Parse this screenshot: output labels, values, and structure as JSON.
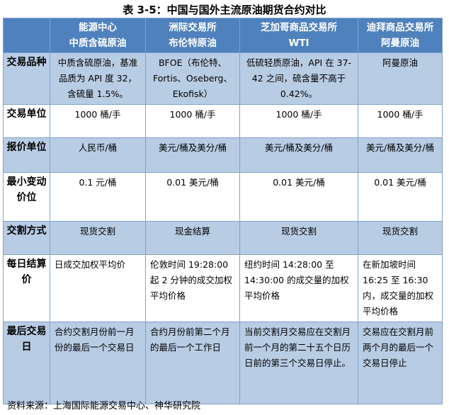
{
  "title": "表 3-5：中国与国外主流原油期货合约对比",
  "columns": [
    {
      "line1": "",
      "line2": ""
    },
    {
      "line1": "能源中心",
      "line2": "中质含硫原油"
    },
    {
      "line1": "洲际交易所",
      "line2": "布伦特原油"
    },
    {
      "line1": "芝加哥商品交易所",
      "line2": "WTI"
    },
    {
      "line1": "迪拜商品交易所",
      "line2": "阿曼原油"
    }
  ],
  "rows": [
    {
      "label": "交易品种",
      "cells": [
        "中质含硫原油，基准品质为 API 度 32，含硫量 1.5%。",
        "BFOE（布伦特、Fortis、Oseberg、Ekofisk）",
        "低硫轻质原油，API 在 37-42 之间，硫含量不高于 0.42%。",
        "阿曼原油"
      ]
    },
    {
      "label": "交易单位",
      "cells": [
        "1000 桶/手",
        "1000 桶/手",
        "1000 桶/手",
        "1000 桶/手"
      ]
    },
    {
      "label": "报价单位",
      "cells": [
        "人民币/桶",
        "美元/桶及美分/桶",
        "美元/桶及美分/桶",
        "美元/桶及美分/桶"
      ]
    },
    {
      "label": "最小变动价位",
      "cells": [
        "0.1 元/桶",
        "0.01 美元/桶",
        "0.01 美元/桶",
        "0.01 美元/桶"
      ]
    },
    {
      "label": "交割方式",
      "cells": [
        "现货交割",
        "现金结算",
        "现货交割",
        "现货交割"
      ]
    },
    {
      "label": "每日结算价",
      "cells": [
        "日成交加权平均价",
        "伦敦时间 19:28:00 起 2 分钟的成交加权平均价格",
        "纽约时间 14:28:00 至 14:30:00 的成交量的加权平均价格",
        "在新加坡时间 16:25 至 16:30 内，成交量的加权平均价格"
      ]
    },
    {
      "label": "最后交易日",
      "cells": [
        "合约交割月份前一月份的最后一个交易日",
        "合约月份前第二个月的最后一个工作日",
        "当前交割月交易应在交割月前一个月的第二十五个日历日前的第三个交易日停止。",
        "交易应在交割月前两个月的最后一个交易日停止"
      ]
    }
  ],
  "colors": {
    "header_bg": "#4f81bd",
    "shade_bg": "#b8cce4",
    "border": "#7ea3cf"
  },
  "source": "资料来源：上海国际能源交易中心、神华研究院"
}
